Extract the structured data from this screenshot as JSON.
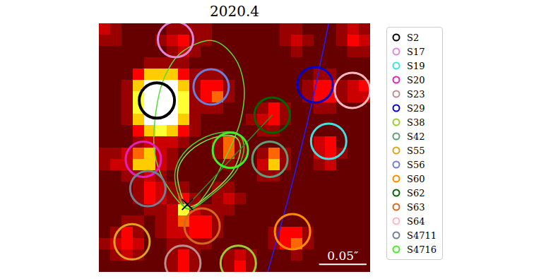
{
  "chart_data": {
    "type": "image",
    "title": "2020.4",
    "xlim": [
      0,
      24
    ],
    "ylim": [
      22,
      0
    ],
    "tick_labels": false,
    "legend": "right",
    "clim": [
      0,
      10
    ],
    "cells": [
      [
        4,
        3,
        2,
        2,
        2,
        2,
        3,
        3,
        3,
        3,
        2,
        2,
        2,
        2,
        2,
        2,
        3,
        3,
        2,
        2,
        2,
        3,
        4,
        3
      ],
      [
        3,
        3,
        2,
        2,
        2,
        3,
        4,
        5,
        3,
        3,
        2,
        2,
        2,
        2,
        2,
        2,
        3,
        4,
        3,
        2,
        2,
        3,
        5,
        4
      ],
      [
        2,
        2,
        2,
        2,
        2,
        2,
        3,
        4,
        3,
        2,
        2,
        2,
        2,
        2,
        2,
        2,
        2,
        3,
        2,
        2,
        2,
        2,
        3,
        3
      ],
      [
        2,
        2,
        2,
        2,
        3,
        3,
        3,
        3,
        2,
        2,
        2,
        2,
        2,
        2,
        2,
        2,
        2,
        2,
        2,
        2,
        2,
        2,
        2,
        2
      ],
      [
        2,
        2,
        2,
        5,
        7,
        7,
        7,
        5,
        3,
        3,
        3,
        2,
        2,
        2,
        2,
        2,
        2,
        2,
        2,
        3,
        3,
        2,
        2,
        2
      ],
      [
        2,
        2,
        3,
        7,
        10,
        10,
        10,
        7,
        3,
        5,
        5,
        3,
        2,
        2,
        2,
        2,
        2,
        2,
        3,
        5,
        5,
        3,
        4,
        5
      ],
      [
        2,
        2,
        3,
        8,
        10,
        10,
        10,
        8,
        3,
        5,
        6,
        3,
        2,
        2,
        2,
        2,
        2,
        2,
        3,
        5,
        5,
        3,
        4,
        4
      ],
      [
        2,
        2,
        3,
        8,
        10,
        10,
        10,
        8,
        3,
        3,
        3,
        2,
        2,
        2,
        3,
        5,
        3,
        2,
        2,
        3,
        3,
        2,
        2,
        2
      ],
      [
        2,
        2,
        3,
        7,
        10,
        10,
        10,
        7,
        3,
        2,
        2,
        2,
        2,
        3,
        4,
        5,
        3,
        2,
        2,
        2,
        2,
        2,
        2,
        2
      ],
      [
        2,
        2,
        2,
        5,
        7,
        8,
        7,
        5,
        3,
        2,
        2,
        2,
        2,
        2,
        3,
        3,
        2,
        2,
        2,
        2,
        2,
        2,
        2,
        2
      ],
      [
        2,
        2,
        2,
        3,
        4,
        4,
        4,
        3,
        2,
        2,
        3,
        6,
        3,
        2,
        2,
        2,
        2,
        2,
        2,
        4,
        5,
        2,
        2,
        2
      ],
      [
        3,
        3,
        4,
        6,
        7,
        4,
        3,
        2,
        2,
        2,
        3,
        6,
        3,
        2,
        3,
        6,
        3,
        2,
        2,
        4,
        5,
        3,
        2,
        2
      ],
      [
        3,
        4,
        4,
        7,
        7,
        4,
        3,
        2,
        2,
        2,
        2,
        3,
        2,
        2,
        4,
        7,
        3,
        2,
        2,
        3,
        4,
        2,
        2,
        2
      ],
      [
        2,
        2,
        3,
        3,
        4,
        3,
        2,
        2,
        2,
        2,
        2,
        2,
        2,
        2,
        3,
        3,
        2,
        2,
        2,
        2,
        2,
        2,
        2,
        2
      ],
      [
        2,
        2,
        2,
        3,
        5,
        4,
        3,
        3,
        2,
        2,
        3,
        3,
        2,
        2,
        2,
        2,
        2,
        2,
        2,
        2,
        2,
        2,
        2,
        2
      ],
      [
        2,
        2,
        2,
        3,
        5,
        4,
        3,
        5,
        3,
        2,
        3,
        4,
        3,
        2,
        2,
        2,
        2,
        2,
        2,
        2,
        2,
        2,
        2,
        2
      ],
      [
        2,
        2,
        2,
        2,
        3,
        3,
        4,
        8,
        4,
        3,
        3,
        3,
        2,
        2,
        2,
        2,
        2,
        2,
        2,
        2,
        2,
        2,
        2,
        2
      ],
      [
        2,
        2,
        3,
        3,
        2,
        3,
        4,
        6,
        5,
        5,
        3,
        2,
        2,
        2,
        2,
        2,
        2,
        2,
        2,
        2,
        2,
        2,
        2,
        2
      ],
      [
        2,
        3,
        5,
        3,
        2,
        3,
        4,
        4,
        5,
        5,
        3,
        2,
        2,
        2,
        2,
        3,
        5,
        5,
        3,
        2,
        2,
        2,
        2,
        2
      ],
      [
        3,
        4,
        5,
        4,
        2,
        2,
        3,
        3,
        3,
        3,
        2,
        2,
        2,
        2,
        2,
        3,
        5,
        6,
        3,
        2,
        2,
        2,
        2,
        2
      ],
      [
        2,
        3,
        4,
        3,
        2,
        2,
        3,
        5,
        3,
        2,
        2,
        3,
        4,
        3,
        2,
        2,
        2,
        3,
        2,
        2,
        2,
        2,
        2,
        2
      ],
      [
        2,
        2,
        2,
        2,
        2,
        2,
        3,
        5,
        3,
        2,
        2,
        3,
        5,
        3,
        2,
        2,
        2,
        2,
        2,
        2,
        2,
        2,
        2,
        2
      ]
    ],
    "series": [
      {
        "name": "S2",
        "color": "#000000",
        "x": 5.1,
        "y": 6.8
      },
      {
        "name": "S17",
        "color": "#dd88dd",
        "x": 6.75,
        "y": 1.4
      },
      {
        "name": "S19",
        "color": "#40e0e0",
        "x": 20.3,
        "y": 10.4
      },
      {
        "name": "S20",
        "color": "#e020c0",
        "x": 3.9,
        "y": 12.0
      },
      {
        "name": "S23",
        "color": "#bc8f8f",
        "x": 7.4,
        "y": 21.2
      },
      {
        "name": "S29",
        "color": "#0000cd",
        "x": 19.1,
        "y": 5.4
      },
      {
        "name": "S38",
        "color": "#9acd32",
        "x": 12.3,
        "y": 21.2
      },
      {
        "name": "S42",
        "color": "#5f9e7a",
        "x": 15.1,
        "y": 12.0
      },
      {
        "name": "S55",
        "color": "#daa520",
        "x": 2.9,
        "y": 19.3
      },
      {
        "name": "S56",
        "color": "#6a7fdb",
        "x": 9.9,
        "y": 5.6
      },
      {
        "name": "S60",
        "color": "#ff8c00",
        "x": 17.1,
        "y": 18.4
      },
      {
        "name": "S62",
        "color": "#006400",
        "x": 15.3,
        "y": 8.1
      },
      {
        "name": "S63",
        "color": "#d2691e",
        "x": 9.1,
        "y": 17.9
      },
      {
        "name": "S64",
        "color": "#ffb6c1",
        "x": 22.4,
        "y": 5.9
      },
      {
        "name": "S4711",
        "color": "#708090",
        "x": 4.3,
        "y": 14.6
      },
      {
        "name": "S4716",
        "color": "#44ee22",
        "x": 11.6,
        "y": 11.2
      }
    ],
    "tracks": [
      {
        "type": "ellipse",
        "color": "#55dd33",
        "points": [
          [
            10.0,
            1.5
          ],
          [
            11.9,
            2.9
          ],
          [
            12.8,
            5.4
          ],
          [
            12.5,
            8.6
          ],
          [
            11.1,
            12.0
          ],
          [
            9.4,
            15.1
          ],
          [
            8.0,
            16.4
          ],
          [
            5.9,
            14.2
          ],
          [
            4.9,
            11.4
          ],
          [
            5.0,
            7.9
          ],
          [
            5.75,
            4.8
          ],
          [
            7.2,
            2.6
          ]
        ]
      },
      {
        "type": "ellipse",
        "color": "#44cc33",
        "points": [
          [
            7.8,
            16.4
          ],
          [
            6.9,
            14.8
          ],
          [
            6.75,
            12.9
          ],
          [
            7.8,
            11.1
          ],
          [
            10.0,
            9.8
          ],
          [
            12.2,
            9.7
          ],
          [
            12.8,
            10.75
          ],
          [
            12.2,
            12.9
          ],
          [
            10.0,
            15.1
          ]
        ]
      },
      {
        "type": "ellipse",
        "color": "#77ee55",
        "points": [
          [
            7.9,
            16.2
          ],
          [
            7.1,
            14.6
          ],
          [
            7.0,
            12.8
          ],
          [
            8.0,
            11.3
          ],
          [
            10.1,
            10.1
          ],
          [
            12.0,
            10.0
          ],
          [
            12.5,
            10.9
          ],
          [
            11.9,
            12.9
          ],
          [
            9.9,
            15.0
          ]
        ]
      },
      {
        "type": "line",
        "color": "#2e8b2e",
        "points": [
          [
            7.8,
            16.1
          ],
          [
            15.3,
            8.1
          ]
        ]
      },
      {
        "type": "line",
        "color": "#1f1fff",
        "points": [
          [
            20.3,
            0
          ],
          [
            18.75,
            7.3
          ],
          [
            16.9,
            14.8
          ],
          [
            14.9,
            22
          ]
        ]
      }
    ],
    "point": {
      "marker": "x",
      "color": "#000000",
      "x": 7.8,
      "y": 16.0
    },
    "scale_bar": {
      "label": "0.05″",
      "color": "#ffffff",
      "x": [
        19.5,
        23.6
      ],
      "y": 21.3
    }
  }
}
